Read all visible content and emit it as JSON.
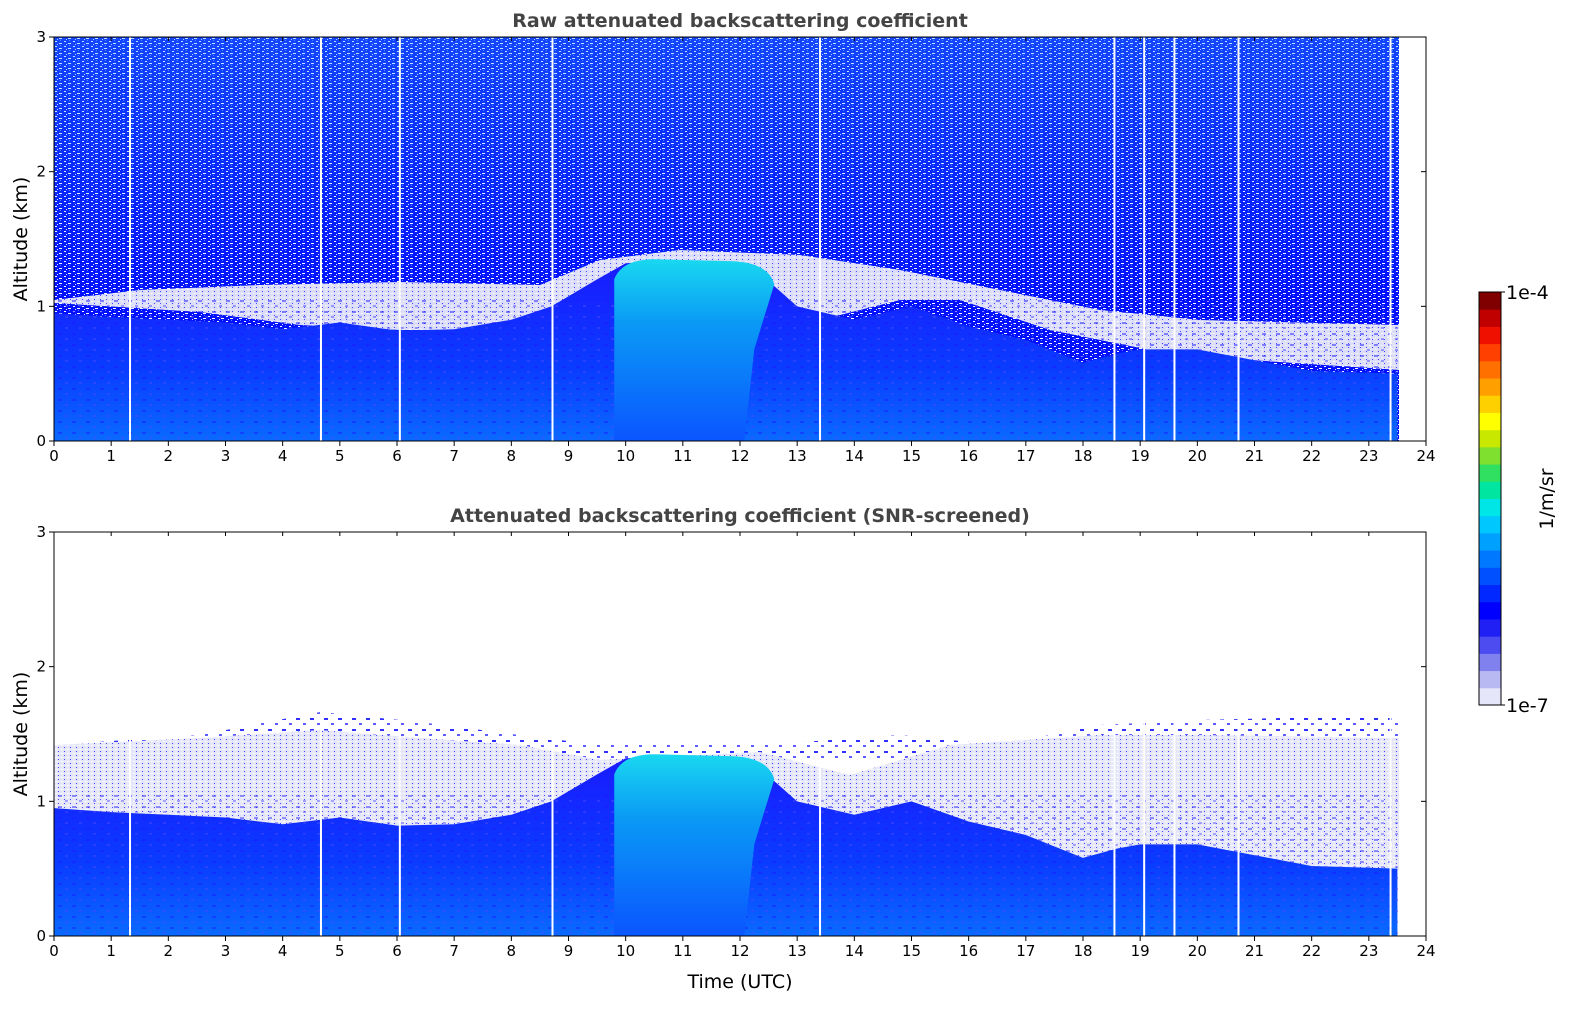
{
  "chart_data": [
    {
      "type": "heatmap",
      "title": "Raw attenuated backscattering coefficient",
      "xlabel": "",
      "ylabel": "Altitude (km)",
      "xlim": [
        0,
        24
      ],
      "ylim": [
        0,
        3
      ],
      "x_ticks": [
        "0",
        "1",
        "2",
        "3",
        "4",
        "5",
        "6",
        "7",
        "8",
        "9",
        "10",
        "11",
        "12",
        "13",
        "14",
        "15",
        "16",
        "17",
        "18",
        "19",
        "20",
        "21",
        "22",
        "23",
        "24"
      ],
      "y_ticks": [
        "0",
        "1",
        "2",
        "3"
      ],
      "data_end_time": 23.5,
      "data_gaps_time": [
        1.33,
        4.67,
        6.05,
        8.72,
        13.4,
        18.55,
        19.07,
        19.6,
        20.72,
        23.38
      ],
      "boundary_layer_top_km": [
        [
          0,
          0.95
        ],
        [
          1,
          0.92
        ],
        [
          2,
          0.9
        ],
        [
          3,
          0.88
        ],
        [
          4,
          0.83
        ],
        [
          5,
          0.88
        ],
        [
          6,
          0.82
        ],
        [
          7,
          0.83
        ],
        [
          8,
          0.9
        ],
        [
          8.7,
          1.0
        ],
        [
          9.5,
          1.2
        ],
        [
          10,
          1.32
        ],
        [
          11,
          1.34
        ],
        [
          12,
          1.3
        ],
        [
          12.6,
          1.15
        ],
        [
          13,
          1.0
        ],
        [
          14,
          0.9
        ],
        [
          15,
          1.0
        ],
        [
          16,
          0.85
        ],
        [
          17,
          0.75
        ],
        [
          18,
          0.58
        ],
        [
          18.6,
          0.65
        ],
        [
          19,
          0.68
        ],
        [
          20,
          0.68
        ],
        [
          21,
          0.6
        ],
        [
          22,
          0.52
        ],
        [
          23.5,
          0.5
        ]
      ],
      "cloud_region": {
        "time_start": 9.8,
        "time_end": 12.6,
        "top_km": 1.35
      }
    },
    {
      "type": "heatmap",
      "title": "Attenuated backscattering coefficient (SNR-screened)",
      "xlabel": "Time (UTC)",
      "ylabel": "Altitude (km)",
      "xlim": [
        0,
        24
      ],
      "ylim": [
        0,
        3
      ],
      "x_ticks": [
        "0",
        "1",
        "2",
        "3",
        "4",
        "5",
        "6",
        "7",
        "8",
        "9",
        "10",
        "11",
        "12",
        "13",
        "14",
        "15",
        "16",
        "17",
        "18",
        "19",
        "20",
        "21",
        "22",
        "23",
        "24"
      ],
      "y_ticks": [
        "0",
        "1",
        "2",
        "3"
      ],
      "data_end_time": 23.5,
      "screened_top_km": 1.6
    }
  ],
  "colorbar": {
    "label": "1/m/sr",
    "max_label": "1e-4",
    "min_label": "1e-7",
    "colors": [
      "#e6e6fa",
      "#b8b8f2",
      "#8080ee",
      "#4c4cf0",
      "#2020f4",
      "#0000ff",
      "#0028ff",
      "#0050ff",
      "#0078ff",
      "#00a0ff",
      "#00c8ff",
      "#00e6e6",
      "#00e6a0",
      "#30e060",
      "#80e030",
      "#c8e800",
      "#ffff00",
      "#ffd000",
      "#ffa000",
      "#ff7000",
      "#ff4000",
      "#f01000",
      "#c00000",
      "#800000"
    ]
  },
  "colors": {
    "sky_raw": "#0000ff",
    "low_backscatter": "#e6e6fa",
    "boundary_layer": "#0a1aff",
    "cloud": "#0aa8f0",
    "title_text": "#444444"
  }
}
